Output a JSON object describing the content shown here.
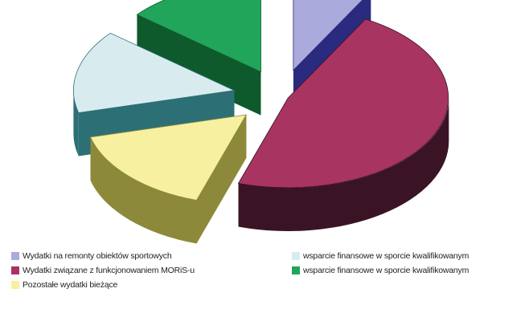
{
  "chart_data": {
    "type": "pie",
    "style": "3d-exploded",
    "title": "",
    "slices": [
      {
        "label": "Wydatki na remonty obiektów sportowych",
        "value": 8,
        "color": "#aaaadc",
        "side_color": "#2a2a7e"
      },
      {
        "label": "Wydatki związane z funkcjonowaniem MORiS-u",
        "value": 47,
        "color": "#a83462",
        "side_color": "#3a1424"
      },
      {
        "label": "Pozostałe wydatki bieżące",
        "value": 16,
        "color": "#f6f0a0",
        "side_color": "#8c8a3a"
      },
      {
        "label": "wsparcie finansowe w sporcie kwalifikowanym",
        "value": 15,
        "color": "#d8ecef",
        "side_color": "#2c7076"
      },
      {
        "label": "wsparcie finansowe w sporcie kwalifikowanym",
        "value": 14,
        "color": "#21a55a",
        "side_color": "#0e5a2c"
      }
    ],
    "legend_position": "bottom"
  }
}
